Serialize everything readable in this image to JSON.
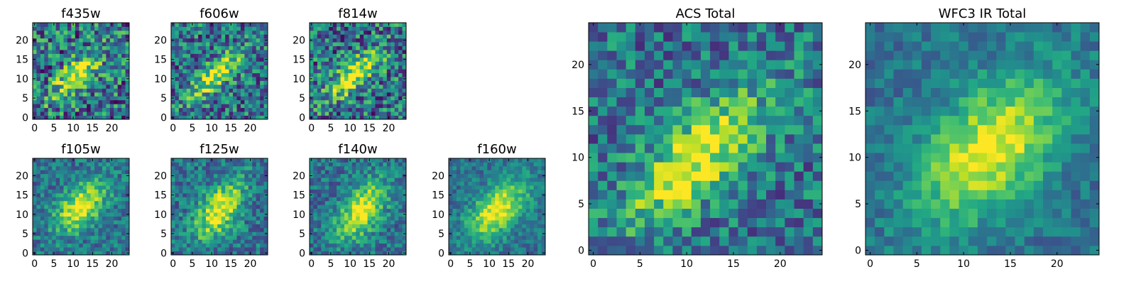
{
  "chart_data": [
    {
      "type": "heatmap",
      "title": "f435w",
      "x_ticks": [
        "0",
        "5",
        "10",
        "15",
        "20"
      ],
      "y_ticks": [
        "0",
        "5",
        "10",
        "15",
        "20"
      ],
      "xlim": [
        -0.5,
        24.5
      ],
      "ylim": [
        -0.5,
        24.5
      ],
      "grid": false,
      "colormap": "viridis",
      "cell_size": 1,
      "shape": [
        25,
        25
      ],
      "source": {
        "cx": 11,
        "cy": 11,
        "angle_deg": 45,
        "sigma_major": 6,
        "sigma_minor": 2.2,
        "noise": 0.38,
        "seed": 11
      }
    },
    {
      "type": "heatmap",
      "title": "f606w",
      "x_ticks": [
        "0",
        "5",
        "10",
        "15",
        "20"
      ],
      "y_ticks": [
        "0",
        "5",
        "10",
        "15",
        "20"
      ],
      "xlim": [
        -0.5,
        24.5
      ],
      "ylim": [
        -0.5,
        24.5
      ],
      "grid": false,
      "colormap": "viridis",
      "cell_size": 1,
      "shape": [
        25,
        25
      ],
      "source": {
        "cx": 11,
        "cy": 11,
        "angle_deg": 40,
        "sigma_major": 6,
        "sigma_minor": 2.0,
        "noise": 0.33,
        "seed": 23
      }
    },
    {
      "type": "heatmap",
      "title": "f814w",
      "x_ticks": [
        "0",
        "5",
        "10",
        "15",
        "20"
      ],
      "y_ticks": [
        "0",
        "5",
        "10",
        "15",
        "20"
      ],
      "xlim": [
        -0.5,
        24.5
      ],
      "ylim": [
        -0.5,
        24.5
      ],
      "grid": false,
      "colormap": "viridis",
      "cell_size": 1,
      "shape": [
        25,
        25
      ],
      "source": {
        "cx": 11,
        "cy": 11,
        "angle_deg": 40,
        "sigma_major": 6,
        "sigma_minor": 2.2,
        "noise": 0.36,
        "seed": 37
      }
    },
    {
      "type": "heatmap",
      "title": "f105w",
      "x_ticks": [
        "0",
        "5",
        "10",
        "15",
        "20"
      ],
      "y_ticks": [
        "0",
        "5",
        "10",
        "15",
        "20"
      ],
      "xlim": [
        -0.5,
        24.5
      ],
      "ylim": [
        -0.5,
        24.5
      ],
      "grid": false,
      "colormap": "viridis",
      "cell_size": 1,
      "shape": [
        25,
        25
      ],
      "source": {
        "cx": 12,
        "cy": 12,
        "angle_deg": 45,
        "sigma_major": 5.5,
        "sigma_minor": 3.2,
        "noise": 0.2,
        "seed": 41
      }
    },
    {
      "type": "heatmap",
      "title": "f125w",
      "x_ticks": [
        "0",
        "5",
        "10",
        "15",
        "20"
      ],
      "y_ticks": [
        "0",
        "5",
        "10",
        "15",
        "20"
      ],
      "xlim": [
        -0.5,
        24.5
      ],
      "ylim": [
        -0.5,
        24.5
      ],
      "grid": false,
      "colormap": "viridis",
      "cell_size": 1,
      "shape": [
        25,
        25
      ],
      "source": {
        "cx": 12,
        "cy": 11,
        "angle_deg": 55,
        "sigma_major": 6,
        "sigma_minor": 3.2,
        "noise": 0.22,
        "seed": 53
      }
    },
    {
      "type": "heatmap",
      "title": "f140w",
      "x_ticks": [
        "0",
        "5",
        "10",
        "15",
        "20"
      ],
      "y_ticks": [
        "0",
        "5",
        "10",
        "15",
        "20"
      ],
      "xlim": [
        -0.5,
        24.5
      ],
      "ylim": [
        -0.5,
        24.5
      ],
      "grid": false,
      "colormap": "viridis",
      "cell_size": 1,
      "shape": [
        25,
        25
      ],
      "source": {
        "cx": 13,
        "cy": 11,
        "angle_deg": 55,
        "sigma_major": 6,
        "sigma_minor": 3.2,
        "noise": 0.2,
        "seed": 67
      }
    },
    {
      "type": "heatmap",
      "title": "f160w",
      "x_ticks": [
        "0",
        "5",
        "10",
        "15",
        "20"
      ],
      "y_ticks": [
        "0",
        "5",
        "10",
        "15",
        "20"
      ],
      "xlim": [
        -0.5,
        24.5
      ],
      "ylim": [
        -0.5,
        24.5
      ],
      "grid": false,
      "colormap": "viridis",
      "cell_size": 1,
      "shape": [
        25,
        25
      ],
      "source": {
        "cx": 12,
        "cy": 11,
        "angle_deg": 45,
        "sigma_major": 6.5,
        "sigma_minor": 3.5,
        "noise": 0.16,
        "seed": 79
      }
    },
    {
      "type": "heatmap",
      "title": "ACS Total",
      "x_ticks": [
        "0",
        "5",
        "10",
        "15",
        "20"
      ],
      "y_ticks": [
        "0",
        "5",
        "10",
        "15",
        "20"
      ],
      "xlim": [
        -0.5,
        24.5
      ],
      "ylim": [
        -0.5,
        24.5
      ],
      "grid": false,
      "colormap": "viridis",
      "cell_size": 1,
      "shape": [
        25,
        25
      ],
      "source": {
        "cx": 11,
        "cy": 10,
        "angle_deg": 45,
        "sigma_major": 6.5,
        "sigma_minor": 2.6,
        "noise": 0.26,
        "seed": 97
      }
    },
    {
      "type": "heatmap",
      "title": "WFC3 IR Total",
      "x_ticks": [
        "0",
        "5",
        "10",
        "15",
        "20"
      ],
      "y_ticks": [
        "0",
        "5",
        "10",
        "15",
        "20"
      ],
      "xlim": [
        -0.5,
        24.5
      ],
      "ylim": [
        -0.5,
        24.5
      ],
      "grid": false,
      "colormap": "viridis",
      "cell_size": 1,
      "shape": [
        25,
        25
      ],
      "source": {
        "cx": 13,
        "cy": 11,
        "angle_deg": 45,
        "sigma_major": 6.5,
        "sigma_minor": 3.8,
        "noise": 0.14,
        "seed": 101
      }
    }
  ]
}
